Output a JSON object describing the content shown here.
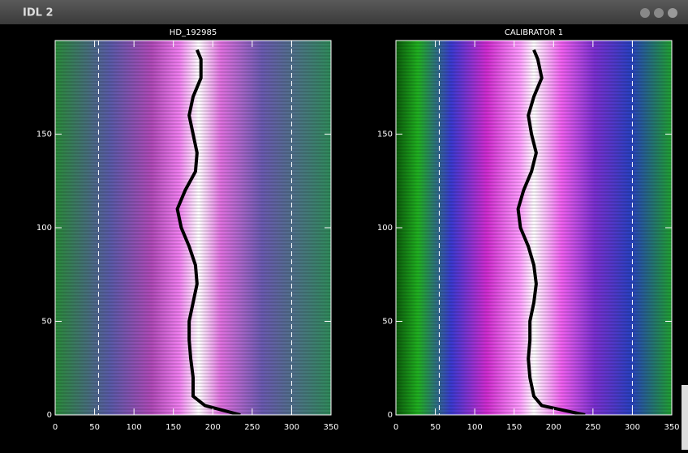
{
  "window_title": "IDL 2",
  "chart_data": [
    {
      "type": "image",
      "title": "HD_192985",
      "xlim": [
        0,
        350
      ],
      "ylim": [
        0,
        200
      ],
      "xticks": [
        0,
        50,
        100,
        150,
        200,
        250,
        300,
        350
      ],
      "yticks": [
        0,
        50,
        100,
        150
      ],
      "vlines": [
        55,
        300
      ],
      "y": [
        0,
        5,
        10,
        20,
        30,
        40,
        50,
        60,
        70,
        80,
        90,
        100,
        110,
        120,
        130,
        140,
        150,
        160,
        170,
        180,
        190,
        195
      ],
      "series": [
        {
          "color": "#000000",
          "values": [
            235,
            190,
            175,
            175,
            172,
            170,
            170,
            175,
            180,
            178,
            170,
            160,
            155,
            165,
            178,
            180,
            175,
            170,
            175,
            185,
            185,
            180
          ]
        }
      ]
    },
    {
      "type": "image",
      "title": "CALIBRATOR 1",
      "xlim": [
        0,
        350
      ],
      "ylim": [
        0,
        200
      ],
      "xticks": [
        0,
        50,
        100,
        150,
        200,
        250,
        300,
        350
      ],
      "yticks": [
        0,
        50,
        100,
        150
      ],
      "vlines": [
        55,
        300
      ],
      "y": [
        0,
        5,
        10,
        20,
        30,
        40,
        50,
        60,
        70,
        80,
        90,
        100,
        110,
        120,
        130,
        140,
        150,
        160,
        170,
        180,
        190,
        195
      ],
      "series": [
        {
          "color": "#000000",
          "values": [
            240,
            185,
            175,
            170,
            168,
            170,
            170,
            175,
            178,
            175,
            168,
            158,
            155,
            162,
            172,
            178,
            172,
            168,
            175,
            185,
            180,
            175
          ]
        }
      ]
    }
  ]
}
